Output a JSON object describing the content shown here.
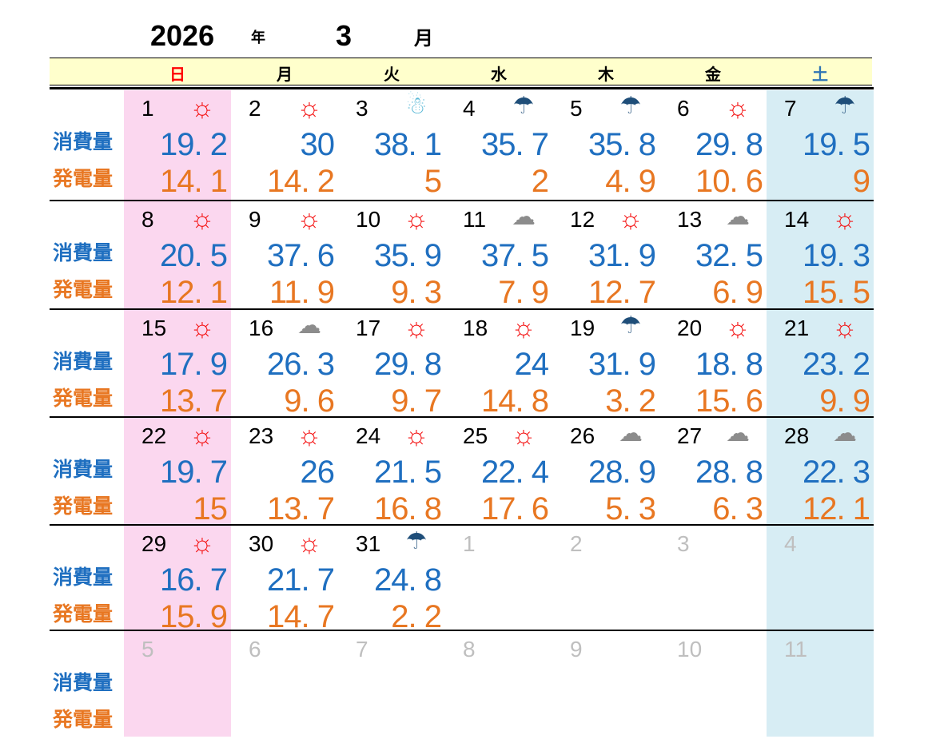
{
  "title": {
    "year": "2026",
    "year_suffix": "年",
    "month": "3",
    "month_suffix": "月"
  },
  "weekday_header": [
    {
      "label": "日",
      "color": "#FF0000"
    },
    {
      "label": "月",
      "color": "#000000"
    },
    {
      "label": "火",
      "color": "#000000"
    },
    {
      "label": "水",
      "color": "#000000"
    },
    {
      "label": "木",
      "color": "#000000"
    },
    {
      "label": "金",
      "color": "#000000"
    },
    {
      "label": "土",
      "color": "#2E74B5"
    }
  ],
  "row_labels": {
    "consumption": "消費量",
    "generation": "発電量"
  },
  "colors": {
    "consumption_value": "#1F6FC0",
    "generation_value": "#E87722",
    "sunday_column_bg": "#FBD7EF",
    "saturday_column_bg": "#D7EDF4",
    "header_band_bg": "#FFFFCC",
    "other_month_day": "#BFBFBF",
    "line": "#000000"
  },
  "weather_icons": {
    "sun": {
      "glyph": "☼",
      "color": "#F40F0F",
      "size": 34
    },
    "umbrella": {
      "glyph": "☂",
      "color": "#1F4E79",
      "size": 30
    },
    "cloud": {
      "glyph": "☁",
      "color": "#8C8C8C",
      "size": 30
    },
    "snowman": {
      "glyph": "☃",
      "color": "#5BB9D6",
      "size": 30
    }
  },
  "weeks": [
    {
      "days": [
        {
          "day": "1",
          "weather": "sun",
          "other_month": false,
          "consumption": "19.2",
          "generation": "14.1"
        },
        {
          "day": "2",
          "weather": "sun",
          "other_month": false,
          "consumption": "30",
          "generation": "14.2"
        },
        {
          "day": "3",
          "weather": "snowman",
          "other_month": false,
          "consumption": "38.1",
          "generation": "5"
        },
        {
          "day": "4",
          "weather": "umbrella",
          "other_month": false,
          "consumption": "35.7",
          "generation": "2"
        },
        {
          "day": "5",
          "weather": "umbrella",
          "other_month": false,
          "consumption": "35.8",
          "generation": "4.9"
        },
        {
          "day": "6",
          "weather": "sun",
          "other_month": false,
          "consumption": "29.8",
          "generation": "10.6"
        },
        {
          "day": "7",
          "weather": "umbrella",
          "other_month": false,
          "consumption": "19.5",
          "generation": "9"
        }
      ]
    },
    {
      "days": [
        {
          "day": "8",
          "weather": "sun",
          "other_month": false,
          "consumption": "20.5",
          "generation": "12.1"
        },
        {
          "day": "9",
          "weather": "sun",
          "other_month": false,
          "consumption": "37.6",
          "generation": "11.9"
        },
        {
          "day": "10",
          "weather": "sun",
          "other_month": false,
          "consumption": "35.9",
          "generation": "9.3"
        },
        {
          "day": "11",
          "weather": "cloud",
          "other_month": false,
          "consumption": "37.5",
          "generation": "7.9"
        },
        {
          "day": "12",
          "weather": "sun",
          "other_month": false,
          "consumption": "31.9",
          "generation": "12.7"
        },
        {
          "day": "13",
          "weather": "cloud",
          "other_month": false,
          "consumption": "32.5",
          "generation": "6.9"
        },
        {
          "day": "14",
          "weather": "sun",
          "other_month": false,
          "consumption": "19.3",
          "generation": "15.5"
        }
      ]
    },
    {
      "days": [
        {
          "day": "15",
          "weather": "sun",
          "other_month": false,
          "consumption": "17.9",
          "generation": "13.7"
        },
        {
          "day": "16",
          "weather": "cloud",
          "other_month": false,
          "consumption": "26.3",
          "generation": "9.6"
        },
        {
          "day": "17",
          "weather": "sun",
          "other_month": false,
          "consumption": "29.8",
          "generation": "9.7"
        },
        {
          "day": "18",
          "weather": "sun",
          "other_month": false,
          "consumption": "24",
          "generation": "14.8"
        },
        {
          "day": "19",
          "weather": "umbrella",
          "other_month": false,
          "consumption": "31.9",
          "generation": "3.2"
        },
        {
          "day": "20",
          "weather": "sun",
          "other_month": false,
          "consumption": "18.8",
          "generation": "15.6"
        },
        {
          "day": "21",
          "weather": "sun",
          "other_month": false,
          "consumption": "23.2",
          "generation": "9.9"
        }
      ]
    },
    {
      "days": [
        {
          "day": "22",
          "weather": "sun",
          "other_month": false,
          "consumption": "19.7",
          "generation": "15"
        },
        {
          "day": "23",
          "weather": "sun",
          "other_month": false,
          "consumption": "26",
          "generation": "13.7"
        },
        {
          "day": "24",
          "weather": "sun",
          "other_month": false,
          "consumption": "21.5",
          "generation": "16.8"
        },
        {
          "day": "25",
          "weather": "sun",
          "other_month": false,
          "consumption": "22.4",
          "generation": "17.6"
        },
        {
          "day": "26",
          "weather": "cloud",
          "other_month": false,
          "consumption": "28.9",
          "generation": "5.3"
        },
        {
          "day": "27",
          "weather": "cloud",
          "other_month": false,
          "consumption": "28.8",
          "generation": "6.3"
        },
        {
          "day": "28",
          "weather": "cloud",
          "other_month": false,
          "consumption": "22.3",
          "generation": "12.1"
        }
      ]
    },
    {
      "days": [
        {
          "day": "29",
          "weather": "sun",
          "other_month": false,
          "consumption": "16.7",
          "generation": "15.9"
        },
        {
          "day": "30",
          "weather": "sun",
          "other_month": false,
          "consumption": "21.7",
          "generation": "14.7"
        },
        {
          "day": "31",
          "weather": "umbrella",
          "other_month": false,
          "consumption": "24.8",
          "generation": "2.2"
        },
        {
          "day": "1",
          "weather": null,
          "other_month": true,
          "consumption": null,
          "generation": null
        },
        {
          "day": "2",
          "weather": null,
          "other_month": true,
          "consumption": null,
          "generation": null
        },
        {
          "day": "3",
          "weather": null,
          "other_month": true,
          "consumption": null,
          "generation": null
        },
        {
          "day": "4",
          "weather": null,
          "other_month": true,
          "consumption": null,
          "generation": null
        }
      ]
    },
    {
      "days": [
        {
          "day": "5",
          "weather": null,
          "other_month": true,
          "consumption": null,
          "generation": null
        },
        {
          "day": "6",
          "weather": null,
          "other_month": true,
          "consumption": null,
          "generation": null
        },
        {
          "day": "7",
          "weather": null,
          "other_month": true,
          "consumption": null,
          "generation": null
        },
        {
          "day": "8",
          "weather": null,
          "other_month": true,
          "consumption": null,
          "generation": null
        },
        {
          "day": "9",
          "weather": null,
          "other_month": true,
          "consumption": null,
          "generation": null
        },
        {
          "day": "10",
          "weather": null,
          "other_month": true,
          "consumption": null,
          "generation": null
        },
        {
          "day": "11",
          "weather": null,
          "other_month": true,
          "consumption": null,
          "generation": null
        }
      ]
    }
  ]
}
